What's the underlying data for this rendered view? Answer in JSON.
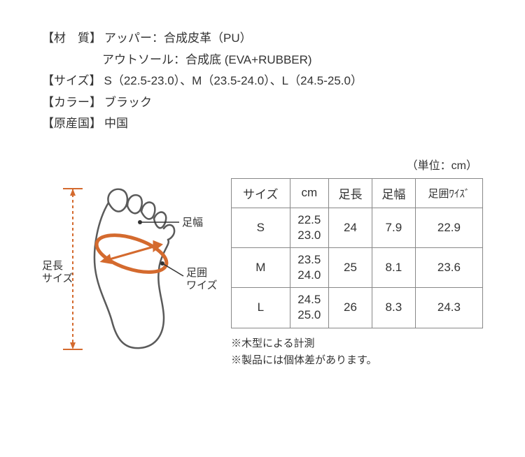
{
  "specs": {
    "material_label": "【材　質】",
    "material_line1": "アッパー：合成皮革（PU）",
    "material_line2": "アウトソール：合成底 (EVA+RUBBER)",
    "size_label": "【サイズ】",
    "size_value": "S（22.5-23.0）、M（23.5-24.0）、L（24.5-25.0）",
    "color_label": "【カラー】",
    "color_value": "ブラック",
    "origin_label": "【原産国】",
    "origin_value": "中国"
  },
  "unit_label": "（単位：cm）",
  "diagram": {
    "label_footwidth": "足幅",
    "label_footgirth1": "足囲",
    "label_footgirth2": "ワイズ",
    "label_length1": "足長",
    "label_length2": "サイズ",
    "colors": {
      "outline": "#5a5a5a",
      "accent": "#d46a2e",
      "text": "#333333"
    }
  },
  "table": {
    "headers": [
      "サイズ",
      "cm",
      "足長",
      "足幅",
      "足囲ﾜｲｽﾞ"
    ],
    "rows": [
      {
        "size": "S",
        "cm1": "22.5",
        "cm2": "23.0",
        "length": "24",
        "width": "7.9",
        "girth": "22.9"
      },
      {
        "size": "M",
        "cm1": "23.5",
        "cm2": "24.0",
        "length": "25",
        "width": "8.1",
        "girth": "23.6"
      },
      {
        "size": "L",
        "cm1": "24.5",
        "cm2": "25.0",
        "length": "26",
        "width": "8.3",
        "girth": "24.3"
      }
    ]
  },
  "notes": {
    "line1": "※木型による計測",
    "line2": "※製品には個体差があります。"
  }
}
